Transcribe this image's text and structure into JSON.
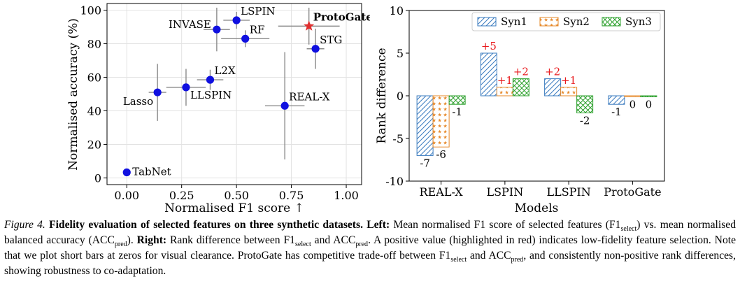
{
  "chart_data": [
    {
      "type": "scatter",
      "xlabel": "Normalised F1 score ↑",
      "ylabel": "Normalised accuracy (%)",
      "xlim": [
        -0.09,
        1.07
      ],
      "ylim": [
        -4,
        104
      ],
      "xticks": [
        "0.00",
        "0.25",
        "0.50",
        "0.75",
        "1.00"
      ],
      "xtick_values": [
        0,
        0.25,
        0.5,
        0.75,
        1.0
      ],
      "yticks": [
        "0",
        "20",
        "40",
        "60",
        "80",
        "100"
      ],
      "ytick_values": [
        0,
        20,
        40,
        60,
        80,
        100
      ],
      "grid": true,
      "points": [
        {
          "label": "TabNet",
          "x": 0.0,
          "y": 3.3,
          "xerr": 0.0,
          "yerr": 0.0,
          "marker": "circle",
          "color": "#1010e0",
          "bold": false,
          "label_pos": "right"
        },
        {
          "label": "Lasso",
          "x": 0.14,
          "y": 51,
          "xerr": 0.04,
          "yerr": 17,
          "marker": "circle",
          "color": "#1010e0",
          "bold": false,
          "label_pos": "below-left"
        },
        {
          "label": "LLSPIN",
          "x": 0.27,
          "y": 54,
          "xerr": 0.09,
          "yerr": 11,
          "marker": "circle",
          "color": "#1010e0",
          "bold": false,
          "label_pos": "below-right"
        },
        {
          "label": "L2X",
          "x": 0.38,
          "y": 58.5,
          "xerr": 0.06,
          "yerr": 6,
          "marker": "circle",
          "color": "#1010e0",
          "bold": false,
          "label_pos": "above-right"
        },
        {
          "label": "INVASE",
          "x": 0.41,
          "y": 88.5,
          "xerr": 0.06,
          "yerr": 13,
          "marker": "circle",
          "color": "#1010e0",
          "bold": false,
          "label_pos": "left"
        },
        {
          "label": "LSPIN",
          "x": 0.5,
          "y": 94,
          "xerr": 0.06,
          "yerr": 5,
          "marker": "circle",
          "color": "#1010e0",
          "bold": false,
          "label_pos": "above-right"
        },
        {
          "label": "RF",
          "x": 0.54,
          "y": 83,
          "xerr": 0.11,
          "yerr": 5,
          "marker": "circle",
          "color": "#1010e0",
          "bold": false,
          "label_pos": "above-right"
        },
        {
          "label": "REAL-X",
          "x": 0.72,
          "y": 43,
          "xerr": 0.09,
          "yerr": 32,
          "marker": "circle",
          "color": "#1010e0",
          "bold": false,
          "label_pos": "above-right"
        },
        {
          "label": "STG",
          "x": 0.86,
          "y": 77,
          "xerr": 0.04,
          "yerr": 12,
          "marker": "circle",
          "color": "#1010e0",
          "bold": false,
          "label_pos": "above-right"
        },
        {
          "label": "ProtoGate",
          "x": 0.83,
          "y": 90.5,
          "xerr": 0.14,
          "yerr": 11,
          "marker": "star",
          "color": "#e03030",
          "bold": true,
          "label_pos": "above-right"
        }
      ]
    },
    {
      "type": "bar",
      "xlabel": "Models",
      "ylabel": "Rank difference",
      "ylim": [
        -10,
        10
      ],
      "yticks": [
        "-10",
        "-5",
        "0",
        "5",
        "10"
      ],
      "ytick_values": [
        -10,
        -5,
        0,
        5,
        10
      ],
      "categories": [
        "REAL-X",
        "LSPIN",
        "LLSPIN",
        "ProtoGate"
      ],
      "legend_position": "top-right",
      "series": [
        {
          "name": "Syn1",
          "color": "#3a7bbf",
          "pattern": "hatch",
          "values": [
            -7,
            5,
            2,
            -1
          ],
          "labels": [
            "-7",
            "+5",
            "+2",
            "-1"
          ]
        },
        {
          "name": "Syn2",
          "color": "#e6892a",
          "pattern": "stars",
          "values": [
            -6,
            1,
            1,
            -0.12
          ],
          "labels": [
            "-6",
            "+1",
            "+1",
            "0"
          ]
        },
        {
          "name": "Syn3",
          "color": "#2ca02c",
          "pattern": "cross",
          "values": [
            -1,
            2,
            -2,
            -0.12
          ],
          "labels": [
            "-1",
            "+2",
            "-2",
            "0"
          ]
        }
      ],
      "positive_label_color": "#e8191c",
      "label_color": "#000000"
    }
  ],
  "caption": {
    "label": "Figure 4.",
    "title": "Fidelity evaluation of selected features on three synthetic datasets.",
    "left_label": "Left:",
    "left_text_1": "Mean normalised F1 score of selected features (F1",
    "sub_select": "select",
    "left_text_2": ") vs. mean normalised balanced accuracy (ACC",
    "sub_pred": "pred",
    "left_text_3": ").",
    "right_label": "Right:",
    "right_text_1": "Rank difference between F1",
    "right_text_2": " and ACC",
    "right_text_3": ". A positive value (highlighted in red) indicates low-fidelity feature selection. Note that we plot short bars at zeros for visual clearance. ProtoGate has competitive trade-off between F1",
    "right_text_4": " and ACC",
    "right_text_5": ", and consistently non-positive rank differences, showing robustness to co-adaptation."
  }
}
